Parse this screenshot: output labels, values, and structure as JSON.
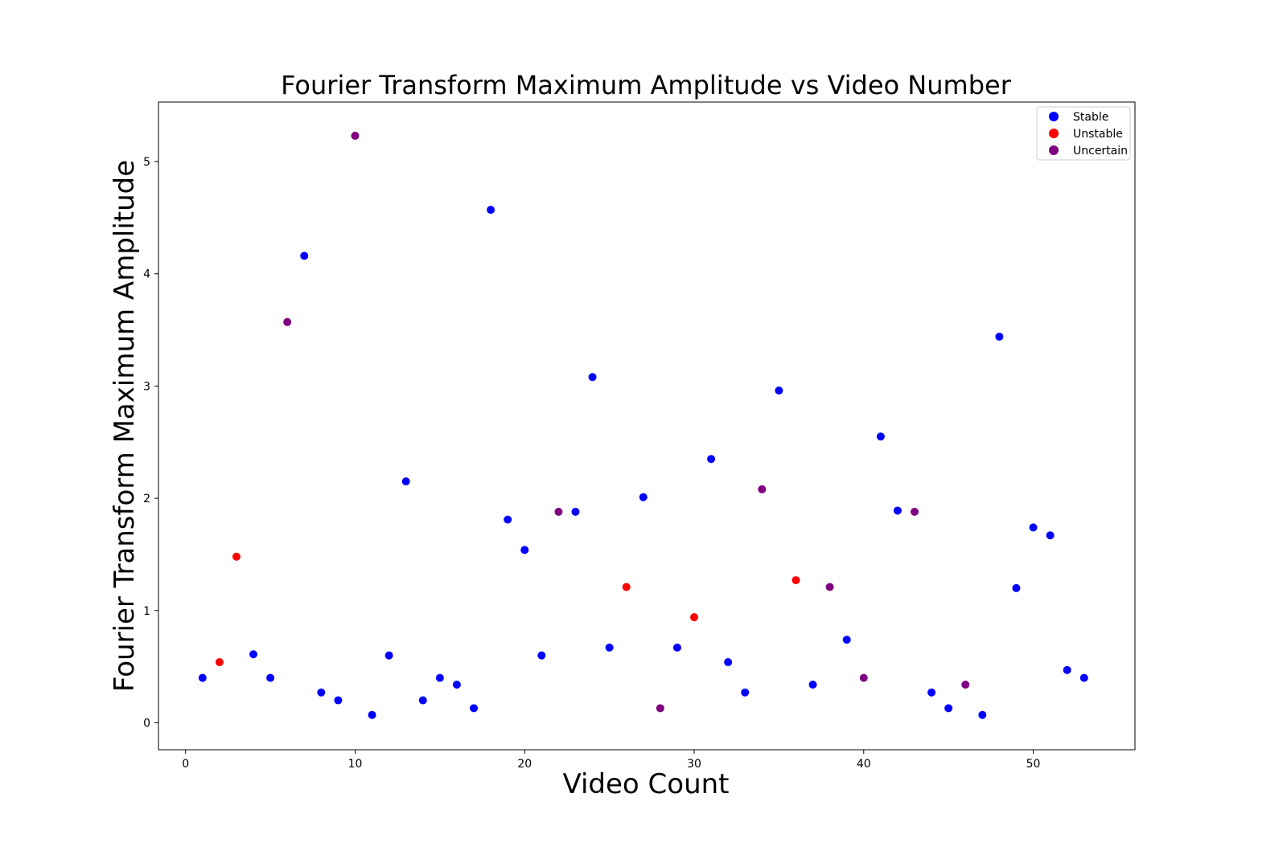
{
  "chart_data": {
    "type": "scatter",
    "title": "Fourier Transform Maximum Amplitude vs Video Number",
    "xlabel": "Video Count",
    "ylabel": "Fourier Transform Maximum Amplitude",
    "xlim": [
      -1.6,
      56
    ],
    "ylim": [
      -0.24,
      5.53
    ],
    "xticks": [
      0,
      10,
      20,
      30,
      40,
      50
    ],
    "yticks": [
      0,
      1,
      2,
      3,
      4,
      5
    ],
    "grid": false,
    "legend_position": "top-right",
    "series": [
      {
        "name": "Stable",
        "color": "#0000ff",
        "points": [
          [
            1,
            0.4
          ],
          [
            4,
            0.61
          ],
          [
            5,
            0.4
          ],
          [
            7,
            4.16
          ],
          [
            8,
            0.27
          ],
          [
            9,
            0.2
          ],
          [
            11,
            0.07
          ],
          [
            12,
            0.6
          ],
          [
            13,
            2.15
          ],
          [
            14,
            0.2
          ],
          [
            15,
            0.4
          ],
          [
            16,
            0.34
          ],
          [
            17,
            0.13
          ],
          [
            18,
            4.57
          ],
          [
            19,
            1.81
          ],
          [
            20,
            1.54
          ],
          [
            21,
            0.6
          ],
          [
            23,
            1.88
          ],
          [
            24,
            3.08
          ],
          [
            25,
            0.67
          ],
          [
            27,
            2.01
          ],
          [
            29,
            0.67
          ],
          [
            31,
            2.35
          ],
          [
            32,
            0.54
          ],
          [
            33,
            0.27
          ],
          [
            35,
            2.96
          ],
          [
            37,
            0.34
          ],
          [
            39,
            0.74
          ],
          [
            41,
            2.55
          ],
          [
            42,
            1.89
          ],
          [
            44,
            0.27
          ],
          [
            45,
            0.13
          ],
          [
            47,
            0.07
          ],
          [
            48,
            3.44
          ],
          [
            49,
            1.2
          ],
          [
            50,
            1.74
          ],
          [
            51,
            1.67
          ],
          [
            52,
            0.47
          ],
          [
            53,
            0.4
          ]
        ]
      },
      {
        "name": "Unstable",
        "color": "#ff0000",
        "points": [
          [
            2,
            0.54
          ],
          [
            3,
            1.48
          ],
          [
            26,
            1.21
          ],
          [
            30,
            0.94
          ],
          [
            36,
            1.27
          ]
        ]
      },
      {
        "name": "Uncertain",
        "color": "#800080",
        "points": [
          [
            6,
            3.57
          ],
          [
            10,
            5.23
          ],
          [
            22,
            1.88
          ],
          [
            28,
            0.13
          ],
          [
            34,
            2.08
          ],
          [
            38,
            1.21
          ],
          [
            40,
            0.4
          ],
          [
            43,
            1.88
          ],
          [
            46,
            0.34
          ]
        ]
      }
    ]
  }
}
